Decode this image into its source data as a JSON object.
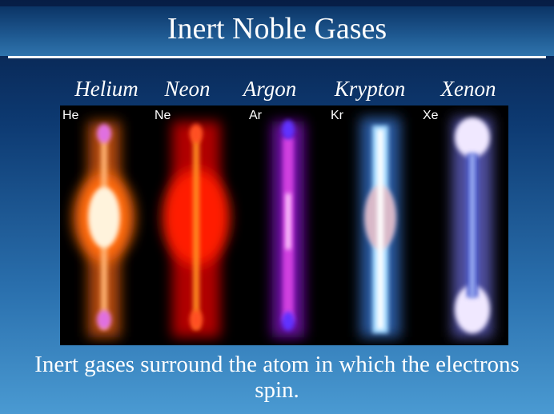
{
  "slide": {
    "title": "Inert Noble Gases",
    "gases": [
      {
        "name": "Helium",
        "symbol": "He"
      },
      {
        "name": "Neon",
        "symbol": "Ne"
      },
      {
        "name": "Argon",
        "symbol": "Ar"
      },
      {
        "name": "Krypton",
        "symbol": "Kr"
      },
      {
        "name": "Xenon",
        "symbol": "Xe"
      }
    ],
    "caption": "Inert gases surround the atom in which the electrons spin."
  }
}
